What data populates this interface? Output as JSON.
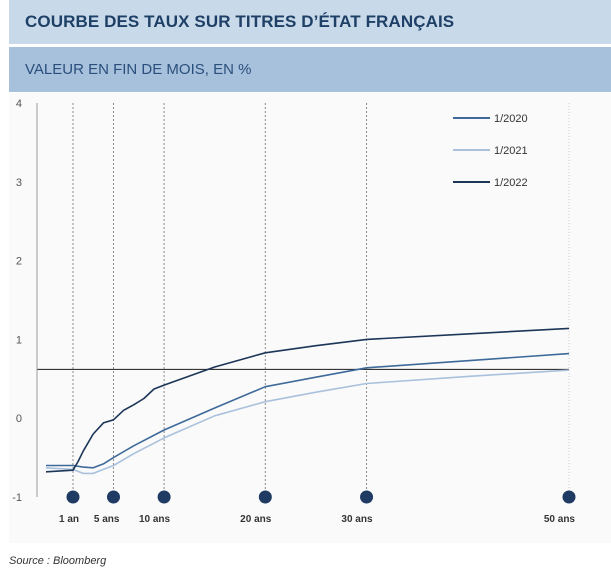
{
  "header": {
    "title": "COURBE DES TAUX SUR TITRES D’ÉTAT FRANÇAIS",
    "subtitle": "VALEUR EN FIN DE MOIS, EN %"
  },
  "footer": {
    "source": "Source : Bloomberg"
  },
  "colors": {
    "title_bg": "#c8d9ea",
    "subtitle_bg": "#a7c0dc",
    "title_text": "#1e3f66",
    "series_2020": "#3e6a9a",
    "series_2021": "#a9c1dd",
    "series_2022": "#1c3657",
    "marker": "#1f3b64"
  },
  "chart_data": {
    "type": "line",
    "title": "COURBE DES TAUX SUR TITRES D’ÉTAT FRANÇAIS",
    "subtitle": "VALEUR EN FIN DE MOIS, EN %",
    "xlabel": "",
    "ylabel": "",
    "ylim": [
      -1,
      4
    ],
    "yticks": [
      -1,
      0,
      1,
      2,
      3,
      4
    ],
    "xlim": [
      0,
      50
    ],
    "xticks": [
      {
        "value": 1,
        "label": "1 an"
      },
      {
        "value": 5,
        "label": "5 ans"
      },
      {
        "value": 10,
        "label": "10 ans"
      },
      {
        "value": 20,
        "label": "20 ans"
      },
      {
        "value": 30,
        "label": "30 ans"
      },
      {
        "value": 50,
        "label": "50 ans"
      }
    ],
    "grid": "vertical dashed at maturities",
    "legend_position": "top-right",
    "reference_line_y": 0.62,
    "series": [
      {
        "name": "1/2020",
        "color": "#3e6a9a",
        "x": [
          0,
          1,
          2,
          3,
          4,
          5,
          7,
          10,
          15,
          20,
          25,
          30,
          40,
          50
        ],
        "y": [
          -0.6,
          -0.6,
          -0.62,
          -0.63,
          -0.58,
          -0.5,
          -0.35,
          -0.15,
          0.13,
          0.4,
          0.52,
          0.64,
          0.73,
          0.82
        ]
      },
      {
        "name": "1/2021",
        "color": "#a9c1dd",
        "x": [
          0,
          1,
          2,
          3,
          4,
          5,
          7,
          10,
          15,
          20,
          25,
          30,
          40,
          50
        ],
        "y": [
          -0.63,
          -0.65,
          -0.7,
          -0.7,
          -0.65,
          -0.6,
          -0.45,
          -0.25,
          0.03,
          0.21,
          0.33,
          0.44,
          0.53,
          0.61
        ]
      },
      {
        "name": "1/2022",
        "color": "#1c3657",
        "x": [
          0,
          1,
          1.5,
          2,
          3,
          4,
          5,
          6,
          7,
          8,
          9,
          10,
          15,
          20,
          25,
          30,
          40,
          50
        ],
        "y": [
          -0.68,
          -0.66,
          -0.55,
          -0.42,
          -0.2,
          -0.06,
          -0.02,
          0.1,
          0.17,
          0.25,
          0.37,
          0.42,
          0.65,
          0.83,
          0.92,
          1.0,
          1.07,
          1.14
        ]
      }
    ]
  }
}
